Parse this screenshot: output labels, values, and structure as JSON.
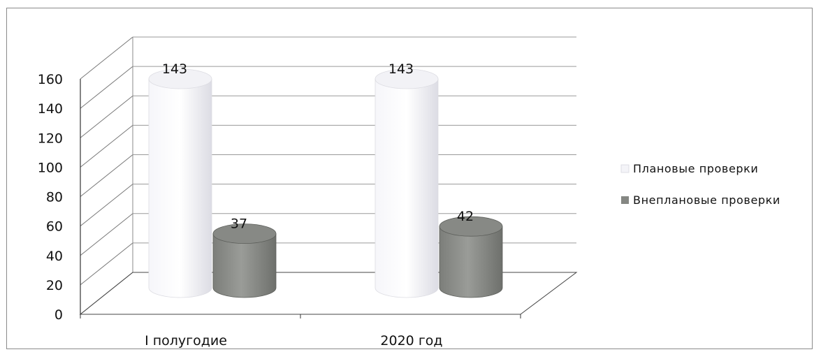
{
  "chart_data": {
    "type": "bar",
    "style": "3d-cylinder",
    "categories": [
      "I полугодие",
      "2020 год"
    ],
    "series": [
      {
        "name": "Плановые проверки",
        "values": [
          143,
          143
        ],
        "color": "#ececf2"
      },
      {
        "name": "Внеплановые проверки",
        "values": [
          37,
          42
        ],
        "color": "#8a8c88"
      }
    ],
    "yticks": [
      "0",
      "20",
      "40",
      "60",
      "80",
      "100",
      "120",
      "140",
      "160"
    ],
    "ylim": [
      0,
      160
    ],
    "grid": true,
    "legend_position": "right",
    "data_labels": true
  }
}
